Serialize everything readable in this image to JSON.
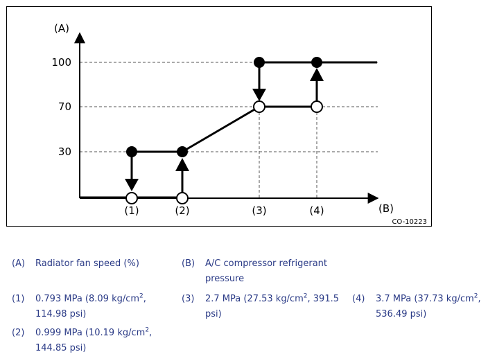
{
  "chart_data": {
    "type": "line",
    "code": "CO-10223",
    "y_axis_key": "(A)",
    "x_axis_key": "(B)",
    "y_ticks": [
      "100",
      "70",
      "30"
    ],
    "x_ticks": [
      "(1)",
      "(2)",
      "(3)",
      "(4)"
    ]
  },
  "legend": {
    "A": {
      "key": "(A)",
      "text": "Radiator fan speed (%)"
    },
    "B": {
      "key": "(B)",
      "text_line1": "A/C compressor refrigerant",
      "text_line2": "pressure"
    },
    "item1": {
      "key": "(1)",
      "l1a": "0.793 MPa (8.09 kg/cm",
      "sup": "2",
      "l1b": ",",
      "l2": "114.98 psi)"
    },
    "item2": {
      "key": "(2)",
      "l1a": "0.999 MPa (10.19 kg/cm",
      "sup": "2",
      "l1b": ",",
      "l2": "144.85 psi)"
    },
    "item3": {
      "key": "(3)",
      "l1a": "2.7 MPa (27.53 kg/cm",
      "sup": "2",
      "l1b": ", 391.5",
      "l2": "psi)"
    },
    "item4": {
      "key": "(4)",
      "l1a": "3.7 MPa (37.73 kg/cm",
      "sup": "2",
      "l1b": ",",
      "l2": "536.49 psi)"
    }
  }
}
